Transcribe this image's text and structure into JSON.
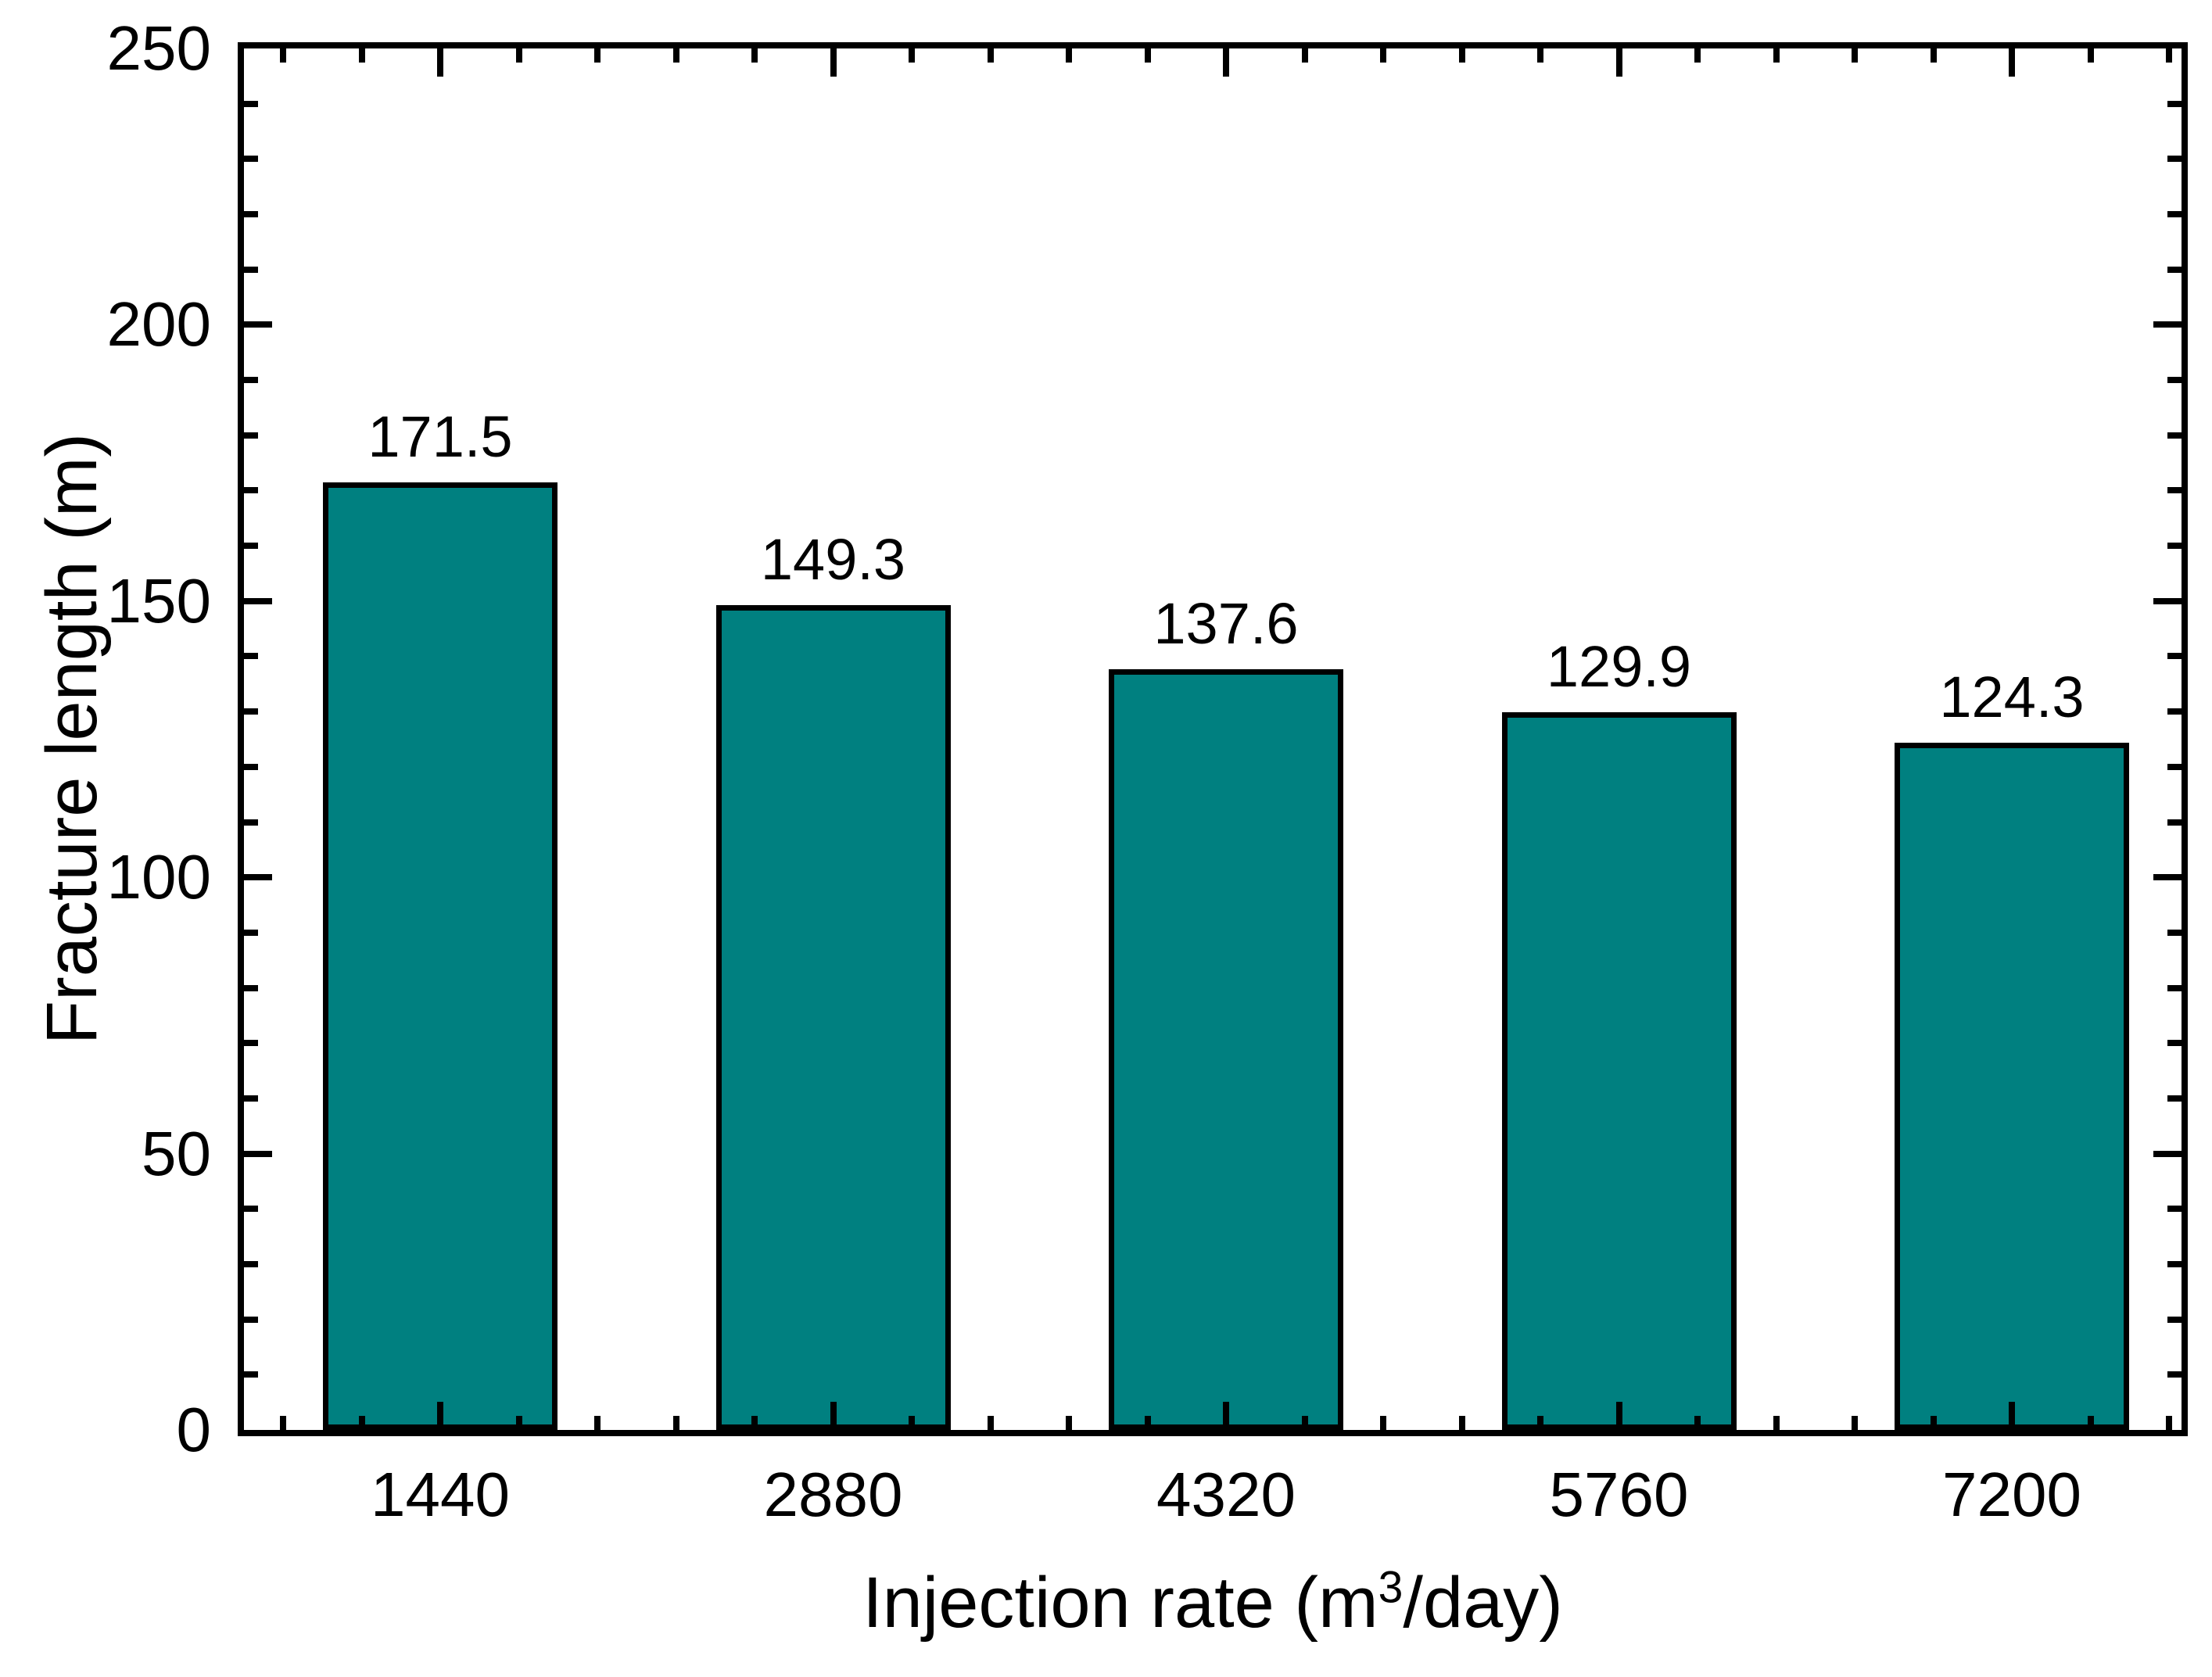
{
  "chart_data": {
    "type": "bar",
    "title": "",
    "xlabel": "Injection rate (m³/day)",
    "xlabel_parts": {
      "prefix": "Injection rate (m",
      "sup": "3",
      "suffix": "/day)"
    },
    "ylabel": "Fracture length (m)",
    "categories": [
      "1440",
      "2880",
      "4320",
      "5760",
      "7200"
    ],
    "values": [
      171.5,
      149.3,
      137.6,
      129.9,
      124.3
    ],
    "value_labels": [
      "171.5",
      "149.3",
      "137.6",
      "129.9",
      "124.3"
    ],
    "ylim": [
      0,
      250
    ],
    "y_major_step": 50,
    "y_minor_step": 10,
    "y_tick_labels": [
      "0",
      "50",
      "100",
      "150",
      "200",
      "250"
    ],
    "x_minor_ticks_per_interval": 4,
    "grid": false,
    "legend": null,
    "frame": "box",
    "tick_direction": "in",
    "bar_color": "#008080",
    "bar_border_color": "#000000",
    "axis_color": "#000000",
    "text_color": "#000000",
    "background_color": "#ffffff"
  }
}
